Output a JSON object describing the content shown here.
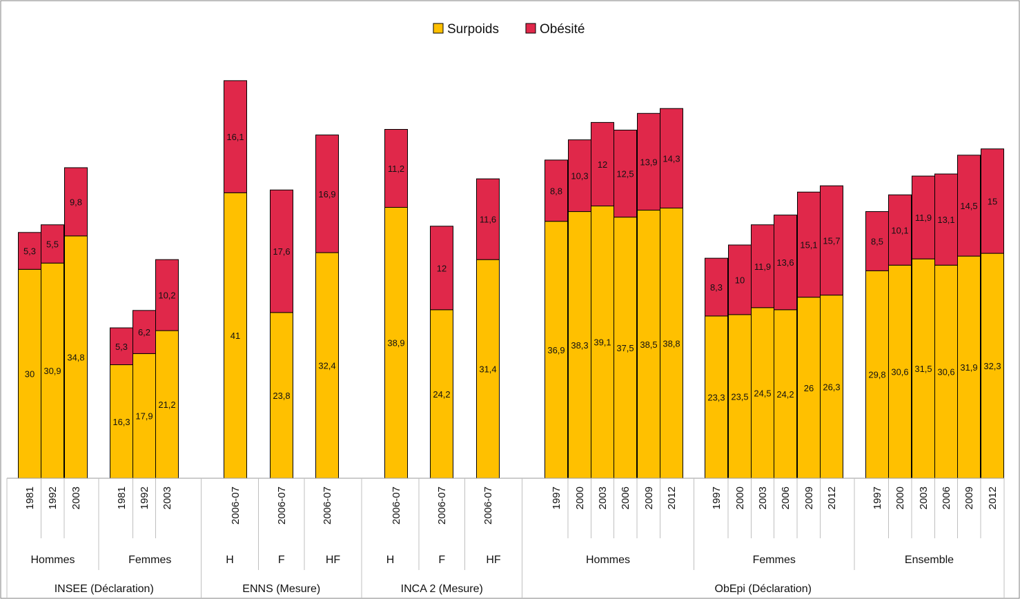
{
  "chart_data": {
    "type": "bar",
    "stacked": true,
    "title": "",
    "xlabel": "",
    "ylabel": "",
    "ylim": [
      0,
      60
    ],
    "grid": false,
    "legend": {
      "position": "top-center",
      "entries": [
        "Surpoids",
        "Obésité"
      ]
    },
    "colors": {
      "Surpoids": "#FFC000",
      "Obésité": "#E0284A",
      "border": "#000000",
      "frame": "#7F7F7F"
    },
    "series": [
      {
        "name": "Surpoids",
        "values": [
          30,
          30.9,
          34.8,
          16.3,
          17.9,
          21.2,
          41,
          23.8,
          32.4,
          38.9,
          24.2,
          31.4,
          36.9,
          38.3,
          39.1,
          37.5,
          38.5,
          38.8,
          23.3,
          23.5,
          24.5,
          24.2,
          26,
          26.3,
          29.8,
          30.6,
          31.5,
          30.6,
          31.9,
          32.3
        ],
        "labels": [
          "30",
          "30,9",
          "34,8",
          "16,3",
          "17,9",
          "21,2",
          "41",
          "23,8",
          "32,4",
          "38,9",
          "24,2",
          "31,4",
          "36,9",
          "38,3",
          "39,1",
          "37,5",
          "38,5",
          "38,8",
          "23,3",
          "23,5",
          "24,5",
          "24,2",
          "26",
          "26,3",
          "29,8",
          "30,6",
          "31,5",
          "30,6",
          "31,9",
          "32,3"
        ]
      },
      {
        "name": "Obésité",
        "values": [
          5.3,
          5.5,
          9.8,
          5.3,
          6.2,
          10.2,
          16.1,
          17.6,
          16.9,
          11.2,
          12,
          11.6,
          8.8,
          10.3,
          12,
          12.5,
          13.9,
          14.3,
          8.3,
          10,
          11.9,
          13.6,
          15.1,
          15.7,
          8.5,
          10.1,
          11.9,
          13.1,
          14.5,
          15
        ],
        "labels": [
          "5,3",
          "5,5",
          "9,8",
          "5,3",
          "6,2",
          "10,2",
          "16,1",
          "17,6",
          "16,9",
          "11,2",
          "12",
          "11,6",
          "8,8",
          "10,3",
          "12",
          "12,5",
          "13,9",
          "14,3",
          "8,3",
          "10",
          "11,9",
          "13,6",
          "15,1",
          "15,7",
          "8,5",
          "10,1",
          "11,9",
          "13,1",
          "14,5",
          "15"
        ]
      }
    ],
    "categories": [
      "1981",
      "1992",
      "2003",
      "1981",
      "1992",
      "2003",
      "2006-07",
      "2006-07",
      "2006-07",
      "2006-07",
      "2006-07",
      "2006-07",
      "1997",
      "2000",
      "2003",
      "2006",
      "2009",
      "2012",
      "1997",
      "2000",
      "2003",
      "2006",
      "2009",
      "2012",
      "1997",
      "2000",
      "2003",
      "2006",
      "2009",
      "2012"
    ],
    "subgroups": [
      {
        "label": "Hommes",
        "start": 0,
        "end": 2
      },
      {
        "label": "Femmes",
        "start": 3,
        "end": 5
      },
      {
        "label": "H",
        "start": 6,
        "end": 6
      },
      {
        "label": "F",
        "start": 7,
        "end": 7
      },
      {
        "label": "HF",
        "start": 8,
        "end": 8
      },
      {
        "label": "H",
        "start": 9,
        "end": 9
      },
      {
        "label": "F",
        "start": 10,
        "end": 10
      },
      {
        "label": "HF",
        "start": 11,
        "end": 11
      },
      {
        "label": "Hommes",
        "start": 12,
        "end": 17
      },
      {
        "label": "Femmes",
        "start": 18,
        "end": 23
      },
      {
        "label": "Ensemble",
        "start": 24,
        "end": 29
      }
    ],
    "groups": [
      {
        "label": "INSEE (Déclaration)",
        "start": 0,
        "end": 5
      },
      {
        "label": "ENNS (Mesure)",
        "start": 6,
        "end": 8
      },
      {
        "label": "INCA 2 (Mesure)",
        "start": 9,
        "end": 11
      },
      {
        "label": "ObEpi (Déclaration)",
        "start": 12,
        "end": 29
      }
    ]
  }
}
